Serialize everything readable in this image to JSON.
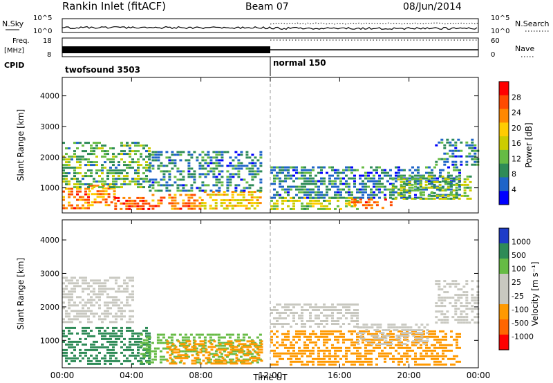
{
  "header": {
    "station": "Rankin Inlet (fitACF)",
    "beam": "Beam 07",
    "date": "08/Jun/2014"
  },
  "status_panels": {
    "nsky_label": "N.Sky",
    "nsearch_label": "N.Search",
    "noise_ticks": [
      "10^5",
      "10^0"
    ],
    "freq_label": "Freq.",
    "freq_unit": "[MHz]",
    "freq_ticks": [
      "18",
      "8"
    ],
    "nave_ticks": [
      "60",
      "0"
    ],
    "nave_label": "Nave",
    "cpid_label": "CPID",
    "cpid_modes": [
      {
        "name": "twofsound 3503",
        "start_hour": 0
      },
      {
        "name": "normal 150",
        "start_hour": 12
      }
    ]
  },
  "chart_data": [
    {
      "type": "heatmap",
      "parameter": "power",
      "ylabel": "Slant Range [km]",
      "xlabel": "Time UT",
      "xlim_hours": [
        0,
        24
      ],
      "ylim": [
        180,
        4600
      ],
      "colorbar_label": "Power [dB]",
      "colorbar_ticks": [
        "28",
        "24",
        "20",
        "16",
        "12",
        "8",
        "4"
      ],
      "colorbar_colors": [
        "#ff0000",
        "#ff4a00",
        "#ff8800",
        "#ffcc00",
        "#cccc00",
        "#66bb44",
        "#2e8b57",
        "#1e64c8",
        "#0000ff"
      ],
      "echo_regions": [
        {
          "t": [
            0.0,
            1.5
          ],
          "r": [
            300,
            1000
          ],
          "level": 24
        },
        {
          "t": [
            1.5,
            3.0
          ],
          "r": [
            400,
            1100
          ],
          "level": 22
        },
        {
          "t": [
            3.0,
            5.0
          ],
          "r": [
            300,
            700
          ],
          "level": 26
        },
        {
          "t": [
            5.0,
            8.0
          ],
          "r": [
            300,
            800
          ],
          "level": 24
        },
        {
          "t": [
            8.0,
            11.5
          ],
          "r": [
            300,
            900
          ],
          "level": 18
        },
        {
          "t": [
            0.0,
            5.0
          ],
          "r": [
            1000,
            2500
          ],
          "level": 10
        },
        {
          "t": [
            5.0,
            11.5
          ],
          "r": [
            900,
            2200
          ],
          "level": 6
        },
        {
          "t": [
            12.0,
            17.0
          ],
          "r": [
            300,
            700
          ],
          "level": 14
        },
        {
          "t": [
            12.0,
            23.0
          ],
          "r": [
            700,
            1700
          ],
          "level": 6
        },
        {
          "t": [
            16.5,
            19.0
          ],
          "r": [
            300,
            650
          ],
          "level": 24
        },
        {
          "t": [
            19.0,
            23.5
          ],
          "r": [
            600,
            1400
          ],
          "level": 12
        },
        {
          "t": [
            21.5,
            24.0
          ],
          "r": [
            1700,
            2600
          ],
          "level": 6
        }
      ]
    },
    {
      "type": "heatmap",
      "parameter": "velocity",
      "ylabel": "Slant Range [km]",
      "xlabel": "Time UT",
      "xlim_hours": [
        0,
        24
      ],
      "ylim": [
        180,
        4600
      ],
      "colorbar_label": "Velocity [m s⁻¹]",
      "colorbar_ticks": [
        "1000",
        "500",
        "100",
        "25",
        "-25",
        "-100",
        "-500",
        "-1000"
      ],
      "colorbar_colors": [
        "#1e3cc8",
        "#2e8b57",
        "#66bb44",
        "#c8c8c0",
        "#c8c8c0",
        "#ff9900",
        "#ff6600",
        "#ff0000"
      ],
      "echo_regions": [
        {
          "t": [
            0.0,
            4.0
          ],
          "r": [
            1500,
            2900
          ],
          "level": 0
        },
        {
          "t": [
            0.0,
            5.0
          ],
          "r": [
            300,
            1400
          ],
          "level": 300
        },
        {
          "t": [
            4.5,
            11.5
          ],
          "r": [
            300,
            1200
          ],
          "level": 100
        },
        {
          "t": [
            6.0,
            11.5
          ],
          "r": [
            300,
            1000
          ],
          "level": -200
        },
        {
          "t": [
            12.0,
            17.0
          ],
          "r": [
            1400,
            2100
          ],
          "level": 0
        },
        {
          "t": [
            12.0,
            23.0
          ],
          "r": [
            300,
            1300
          ],
          "level": -200
        },
        {
          "t": [
            17.0,
            21.0
          ],
          "r": [
            900,
            1500
          ],
          "level": 0
        },
        {
          "t": [
            21.5,
            24.0
          ],
          "r": [
            1500,
            2800
          ],
          "level": 0
        }
      ]
    }
  ],
  "time_ticks": [
    "00:00",
    "04:00",
    "08:00",
    "12:00",
    "16:00",
    "20:00",
    "00:00"
  ],
  "range_ticks": [
    "1000",
    "2000",
    "3000",
    "4000"
  ]
}
